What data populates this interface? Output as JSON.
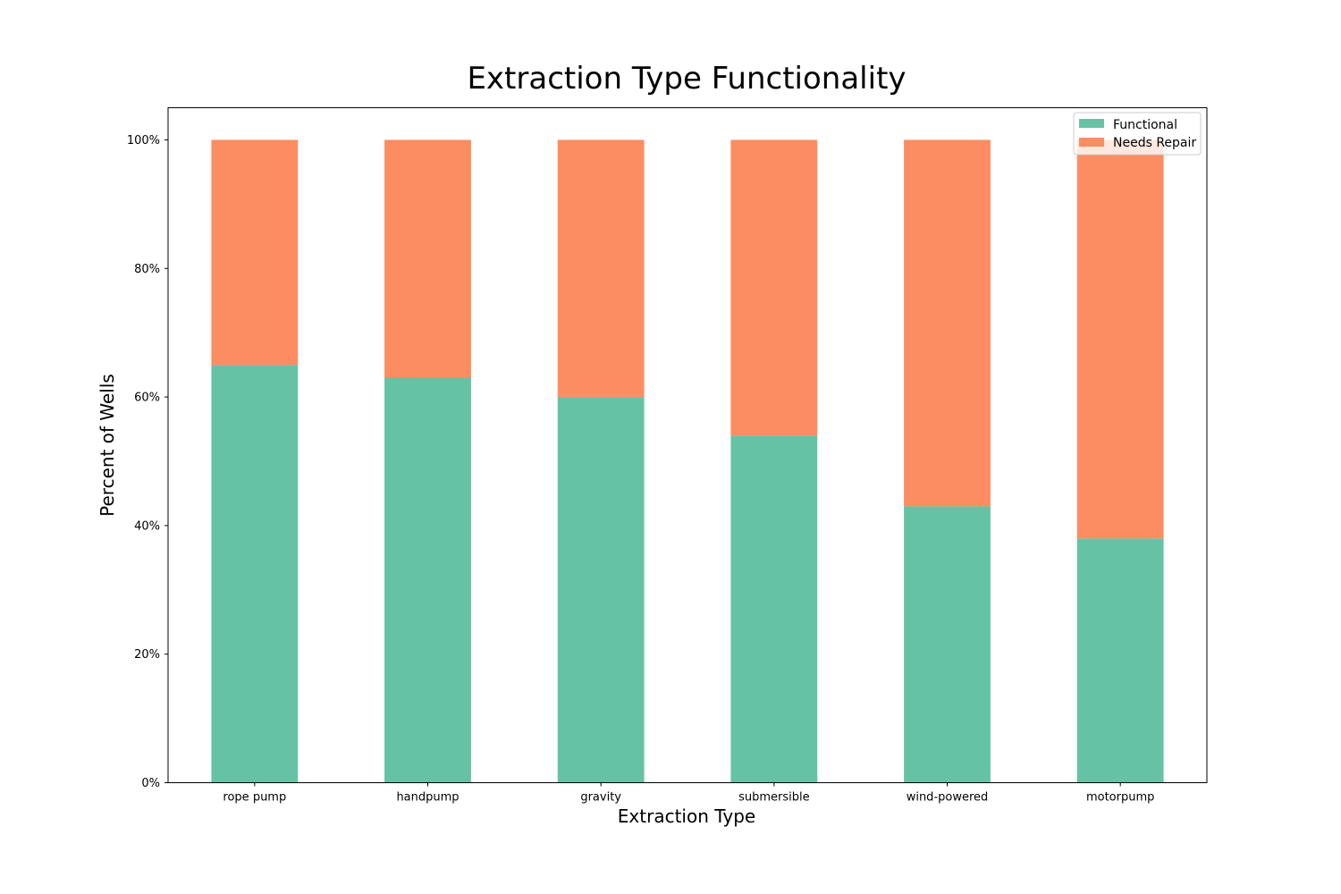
{
  "chart_data": {
    "type": "bar",
    "stacked": true,
    "title": "Extraction Type Functionality",
    "xlabel": "Extraction Type",
    "ylabel": "Percent of Wells",
    "categories": [
      "rope pump",
      "handpump",
      "gravity",
      "submersible",
      "wind-powered",
      "motorpump"
    ],
    "series": [
      {
        "name": "Functional",
        "color": "#66c2a5",
        "values": [
          65,
          63,
          60,
          54,
          43,
          38
        ]
      },
      {
        "name": "Needs Repair",
        "color": "#fc8d62",
        "values": [
          35,
          37,
          40,
          46,
          57,
          62
        ]
      }
    ],
    "ylim": [
      0,
      105
    ],
    "yticks": [
      0,
      20,
      40,
      60,
      80,
      100
    ],
    "ytick_labels": [
      "0%",
      "20%",
      "40%",
      "60%",
      "80%",
      "100%"
    ],
    "grid": false,
    "legend_position": "top-right"
  }
}
